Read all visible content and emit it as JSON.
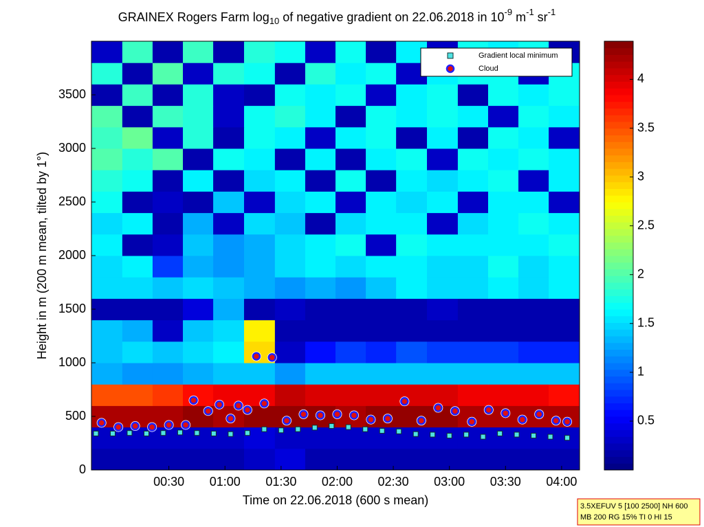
{
  "chart_data": {
    "type": "heatmap",
    "title": [
      "GRAINEX Rogers Farm log",
      "10",
      " of negative gradient on 22.06.2018 in 10",
      "-9",
      " m",
      "-1",
      " sr",
      "-1"
    ],
    "title_scripts": [
      "normal",
      "sub",
      "normal",
      "super",
      "normal",
      "super",
      "normal",
      "super"
    ],
    "x_label": "Time on 22.06.2018 (600 s mean)",
    "y_label": "Height in m (200 m mean, tilted by 1°)",
    "xlim": [
      -0.19,
      4.16
    ],
    "xticks": [
      {
        "value": 0.5,
        "label": "00:30"
      },
      {
        "value": 1,
        "label": "01:00"
      },
      {
        "value": 1.5,
        "label": "01:30"
      },
      {
        "value": 2,
        "label": "02:00"
      },
      {
        "value": 2.5,
        "label": "02:30"
      },
      {
        "value": 3,
        "label": "03:00"
      },
      {
        "value": 3.5,
        "label": "03:30"
      },
      {
        "value": 4,
        "label": "04:00"
      }
    ],
    "ylim": [
      0,
      4000
    ],
    "yticks": [
      0,
      500,
      1000,
      1500,
      2000,
      2500,
      3000,
      3500
    ],
    "clim": [
      0,
      4.39
    ],
    "cticks": [
      0.5,
      1,
      1.5,
      2,
      2.5,
      3,
      3.5,
      4
    ],
    "colormap": "jet",
    "x": [
      -0.05,
      0.22,
      0.49,
      0.76,
      1.03,
      1.31,
      1.58,
      1.85,
      2.12,
      2.39,
      2.66,
      2.94,
      3.21,
      3.48,
      3.75,
      4.02
    ],
    "y": [
      100,
      300,
      500,
      700,
      900,
      1100,
      1300,
      1500,
      1700,
      1900,
      2100,
      2300,
      2500,
      2700,
      2900,
      3100,
      3300,
      3500,
      3700,
      3900
    ],
    "z": [
      [
        0.2,
        0.2,
        0.2,
        0.2,
        0.2,
        0.3,
        0.4,
        0.2,
        0.2,
        0.2,
        0.2,
        0.2,
        0.2,
        0.2,
        0.2,
        0.2
      ],
      [
        0.3,
        0.3,
        0.3,
        0.3,
        0.3,
        0.4,
        0.3,
        0.3,
        0.3,
        0.3,
        0.3,
        0.3,
        0.3,
        0.3,
        0.3,
        0.3
      ],
      [
        4.2,
        4.2,
        4.2,
        4.3,
        4.2,
        4.3,
        4.3,
        4.3,
        4.2,
        4.3,
        4.3,
        4.3,
        4.2,
        4.2,
        4.2,
        4.2
      ],
      [
        3.5,
        3.5,
        3.6,
        3.8,
        3.9,
        3.9,
        4.1,
        4.0,
        4.0,
        4.0,
        4.0,
        4.0,
        3.9,
        3.9,
        3.9,
        3.8
      ],
      [
        1.3,
        1.2,
        1.2,
        1.3,
        1.4,
        1.4,
        1.2,
        1.4,
        1.4,
        1.4,
        1.4,
        1.4,
        1.4,
        1.4,
        1.4,
        1.4
      ],
      [
        1.4,
        1.5,
        1.4,
        1.5,
        1.6,
        2.9,
        0.3,
        0.6,
        0.8,
        0.7,
        0.9,
        0.8,
        0.8,
        0.8,
        0.7,
        0.7
      ],
      [
        1.4,
        1.3,
        0.3,
        1.4,
        1.5,
        2.8,
        0.2,
        0.2,
        0.2,
        0.2,
        0.2,
        0.2,
        0.2,
        0.2,
        0.2,
        0.2
      ],
      [
        0.2,
        0.2,
        0.2,
        0.4,
        1.3,
        0.2,
        0.3,
        0.2,
        0.2,
        0.2,
        0.2,
        0.3,
        0.2,
        0.2,
        0.2,
        0.2
      ],
      [
        1.5,
        1.5,
        1.4,
        1.5,
        1.4,
        1.3,
        1.2,
        1.3,
        1.2,
        1.4,
        1.6,
        1.5,
        1.5,
        1.6,
        1.5,
        1.6
      ],
      [
        1.5,
        1.6,
        0.8,
        1.3,
        1.2,
        1.3,
        1.5,
        1.6,
        1.5,
        1.6,
        1.6,
        1.5,
        1.5,
        1.7,
        1.5,
        1.6
      ],
      [
        1.6,
        0.2,
        0.3,
        1.4,
        1.2,
        1.3,
        1.5,
        1.6,
        1.7,
        0.3,
        1.7,
        1.6,
        1.6,
        1.6,
        1.6,
        1.7
      ],
      [
        1.5,
        1.6,
        0.2,
        1.3,
        0.3,
        1.5,
        1.4,
        0.2,
        1.5,
        1.6,
        1.6,
        0.3,
        1.5,
        1.6,
        1.7,
        1.6
      ],
      [
        1.7,
        0.2,
        0.3,
        0.2,
        1.4,
        0.3,
        1.5,
        1.6,
        0.3,
        1.6,
        1.5,
        1.6,
        0.3,
        1.6,
        1.6,
        0.3
      ],
      [
        1.8,
        1.7,
        0.2,
        1.6,
        0.2,
        1.5,
        1.6,
        0.2,
        1.7,
        0.2,
        1.6,
        1.5,
        1.6,
        1.7,
        0.3,
        1.6
      ],
      [
        2.0,
        1.8,
        2.0,
        0.2,
        1.7,
        1.6,
        0.2,
        1.6,
        0.2,
        1.6,
        1.7,
        0.3,
        1.7,
        1.6,
        1.7,
        1.6
      ],
      [
        1.9,
        2.1,
        0.3,
        1.8,
        0.2,
        1.7,
        1.6,
        0.3,
        1.6,
        1.7,
        0.2,
        1.6,
        0.2,
        1.7,
        1.6,
        0.3
      ],
      [
        2.0,
        0.2,
        1.9,
        1.8,
        0.3,
        1.7,
        1.8,
        1.6,
        0.2,
        1.7,
        1.6,
        1.7,
        1.6,
        0.3,
        1.7,
        1.6
      ],
      [
        0.2,
        1.9,
        0.2,
        1.8,
        0.3,
        0.2,
        1.7,
        1.6,
        1.7,
        0.3,
        1.6,
        1.7,
        0.2,
        1.7,
        1.6,
        1.7
      ],
      [
        1.8,
        0.2,
        2.0,
        0.3,
        1.8,
        1.7,
        0.2,
        1.8,
        1.6,
        1.7,
        0.3,
        1.6,
        1.7,
        1.7,
        0.3,
        1.7
      ],
      [
        0.3,
        1.9,
        0.2,
        1.9,
        0.2,
        1.8,
        1.7,
        0.3,
        1.7,
        0.2,
        1.6,
        0.3,
        1.7,
        1.6,
        1.7,
        0.2
      ]
    ],
    "series": [
      {
        "name": "Gradient local minimum",
        "marker": "square",
        "color": "#4fe3e3",
        "edge": "#103030",
        "x": [
          -0.15,
          0,
          0.15,
          0.3,
          0.45,
          0.6,
          0.75,
          0.9,
          1.05,
          1.2,
          1.35,
          1.5,
          1.65,
          1.8,
          1.95,
          2.1,
          2.25,
          2.4,
          2.55,
          2.7,
          2.85,
          3.0,
          3.15,
          3.3,
          3.45,
          3.6,
          3.75,
          3.9,
          4.05
        ],
        "values": [
          340,
          340,
          345,
          340,
          345,
          350,
          345,
          340,
          335,
          345,
          380,
          370,
          380,
          395,
          410,
          400,
          380,
          365,
          360,
          335,
          330,
          320,
          330,
          310,
          340,
          330,
          320,
          310,
          300
        ]
      },
      {
        "name": "Cloud",
        "marker": "circle",
        "color": "#e01010",
        "edge": "#2020ff",
        "x": [
          -0.1,
          0.05,
          0.2,
          0.35,
          0.5,
          0.65,
          0.72,
          0.85,
          0.95,
          1.05,
          1.12,
          1.2,
          1.28,
          1.35,
          1.42,
          1.55,
          1.7,
          1.85,
          2.0,
          2.15,
          2.3,
          2.45,
          2.6,
          2.75,
          2.9,
          3.05,
          3.2,
          3.35,
          3.5,
          3.65,
          3.8,
          3.95,
          4.05
        ],
        "values": [
          440,
          400,
          410,
          400,
          420,
          420,
          650,
          550,
          610,
          480,
          600,
          560,
          1060,
          620,
          1050,
          460,
          520,
          510,
          520,
          510,
          470,
          480,
          640,
          460,
          580,
          550,
          450,
          560,
          530,
          470,
          520,
          460,
          450
        ]
      }
    ],
    "legend": "top-right",
    "annotation": [
      "3.5XEFUV 5 [100 2500] NH 600",
      "MB 200 RG 15% TI 0 HI 15"
    ]
  }
}
